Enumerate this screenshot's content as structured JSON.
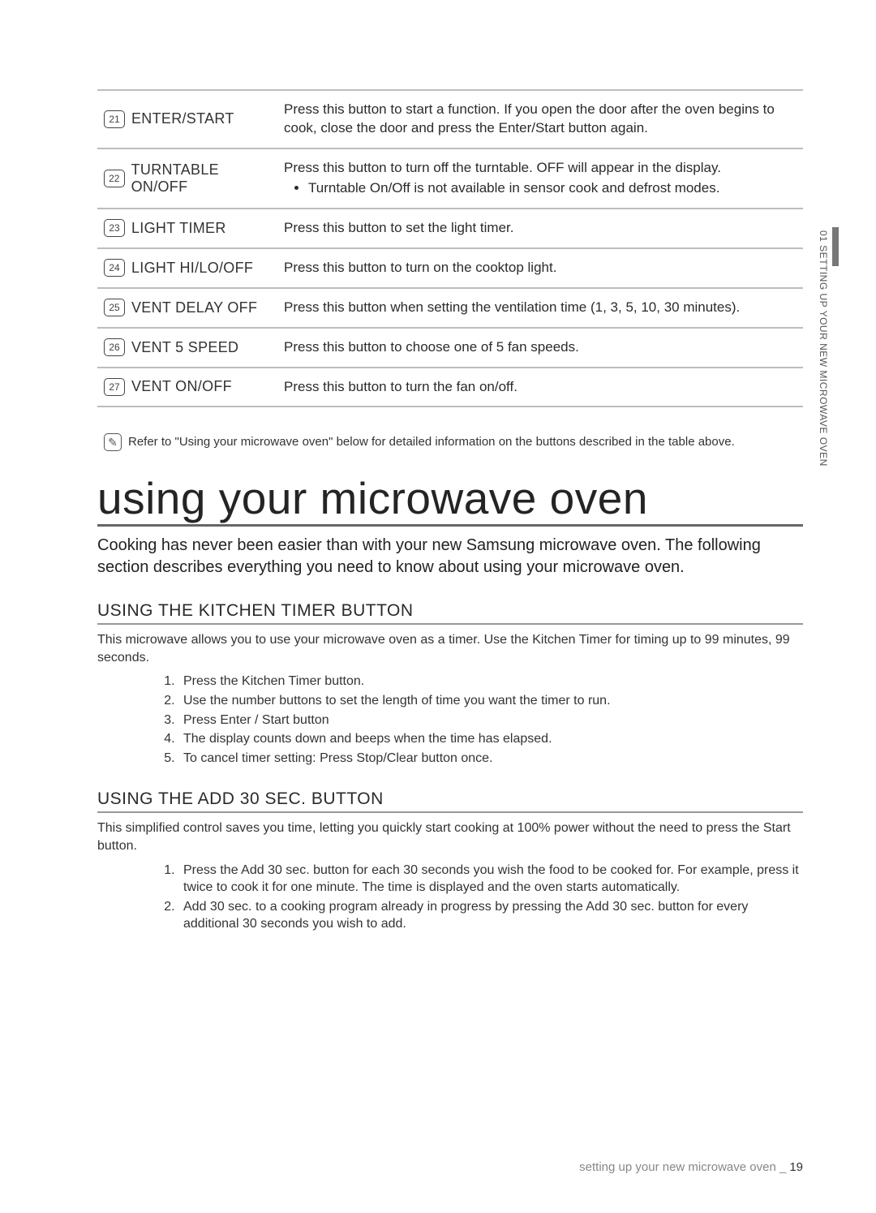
{
  "table": {
    "rows": [
      {
        "num": "21",
        "label": "ENTER/START",
        "desc": "Press this button to start a function. If you open the door after the oven begins to cook, close the door and press the Enter/Start button again.",
        "bullets": []
      },
      {
        "num": "22",
        "label": "TURNTABLE ON/OFF",
        "desc": "Press this button to turn off the turntable. OFF will appear in the display.",
        "bullets": [
          "Turntable On/Off is not available in sensor cook and defrost modes."
        ]
      },
      {
        "num": "23",
        "label": "LIGHT TIMER",
        "desc": "Press this button to set the light timer.",
        "bullets": []
      },
      {
        "num": "24",
        "label": "LIGHT HI/LO/OFF",
        "desc": "Press this button to turn on the cooktop light.",
        "bullets": []
      },
      {
        "num": "25",
        "label": "VENT DELAY OFF",
        "desc": "Press this button when setting the ventilation time (1, 3, 5, 10, 30 minutes).",
        "bullets": []
      },
      {
        "num": "26",
        "label": "VENT 5 SPEED",
        "desc": "Press this button to choose one of 5 fan speeds.",
        "bullets": []
      },
      {
        "num": "27",
        "label": "VENT ON/OFF",
        "desc": "Press this button to turn the fan on/off.",
        "bullets": []
      }
    ]
  },
  "note": "Refer to \"Using your microwave oven\" below for detailed information on the buttons described in the table above.",
  "title": "using your microwave oven",
  "intro": "Cooking has never been easier than with your new Samsung microwave oven. The following section describes everything you need to know about using your microwave oven.",
  "sections": [
    {
      "heading": "USING THE KITCHEN TIMER BUTTON",
      "para": "This microwave allows you to use your microwave oven as a timer. Use the Kitchen Timer for timing up to 99 minutes, 99 seconds.",
      "steps": [
        "Press the Kitchen Timer button.",
        "Use the number buttons to set the length of time you want the timer to run.",
        "Press Enter / Start button",
        "The display counts down and beeps when the time has elapsed.",
        "To cancel timer setting: Press Stop/Clear button once."
      ]
    },
    {
      "heading": "USING THE ADD 30 SEC. BUTTON",
      "para": "This simplified control saves you time, letting you quickly start cooking at 100% power without the need to press the Start button.",
      "steps": [
        "Press the Add 30 sec. button for each 30 seconds you wish the food to be cooked for. For example, press it twice to cook it for one minute. The time is displayed and the oven starts automatically.",
        "Add 30 sec. to a cooking program already in progress by pressing the Add 30 sec. button for every additional 30 seconds you wish to add."
      ]
    }
  ],
  "sidebar": "01 SETTING UP YOUR NEW MICROWAVE OVEN",
  "footer_text": "setting up your new microwave oven _",
  "page_num": "19"
}
